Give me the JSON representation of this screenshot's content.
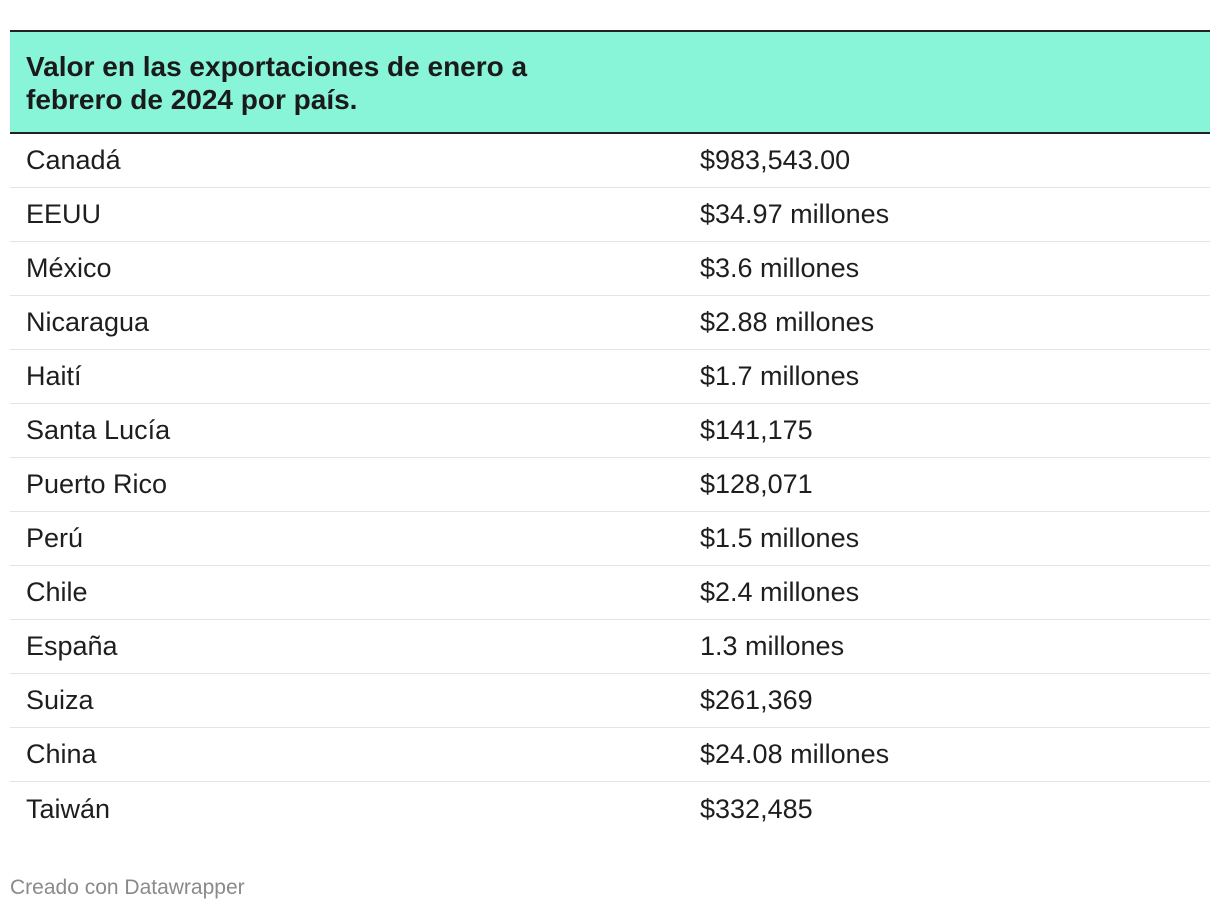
{
  "chart_data": {
    "type": "table",
    "title": "Valor en las exportaciones de enero a febrero de 2024 por país.",
    "rows": [
      {
        "country": "Canadá",
        "value": "$983,543.00"
      },
      {
        "country": "EEUU",
        "value": "$34.97 millones"
      },
      {
        "country": "México",
        "value": "$3.6 millones"
      },
      {
        "country": "Nicaragua",
        "value": "$2.88 millones"
      },
      {
        "country": "Haití",
        "value": "$1.7 millones"
      },
      {
        "country": "Santa Lucía",
        "value": "$141,175"
      },
      {
        "country": "Puerto Rico",
        "value": "$128,071"
      },
      {
        "country": "Perú",
        "value": "$1.5 millones"
      },
      {
        "country": "Chile",
        "value": "$2.4 millones"
      },
      {
        "country": "España",
        "value": "1.3 millones"
      },
      {
        "country": "Suiza",
        "value": "$261,369"
      },
      {
        "country": "China",
        "value": "$24.08 millones"
      },
      {
        "country": "Taiwán",
        "value": "$332,485"
      }
    ]
  },
  "footer": {
    "credit": "Creado con Datawrapper"
  },
  "colors": {
    "header_bg": "#88f4d8",
    "text": "#1e1e1e",
    "footer_text": "#8a8a8a"
  }
}
